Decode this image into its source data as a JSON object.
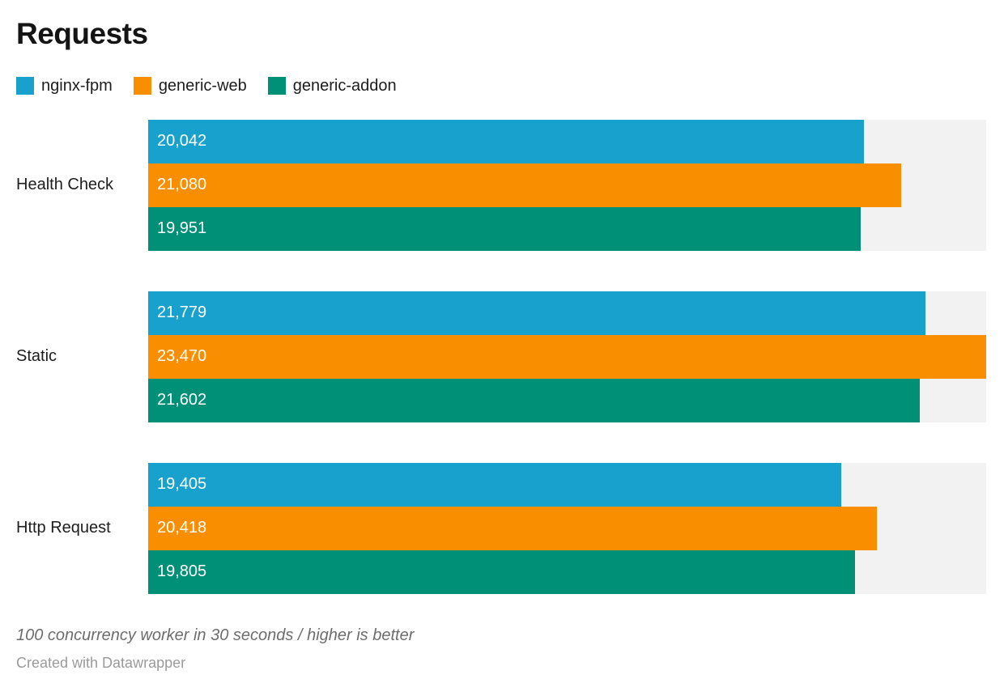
{
  "title": "Requests",
  "legend": {
    "items": [
      {
        "label": "nginx-fpm",
        "color": "#18A1CD"
      },
      {
        "label": "generic-web",
        "color": "#F98E00"
      },
      {
        "label": "generic-addon",
        "color": "#009077"
      }
    ]
  },
  "chart_data": {
    "type": "bar",
    "orientation": "horizontal",
    "title": "Requests",
    "categories": [
      "Health Check",
      "Static",
      "Http Request"
    ],
    "series": [
      {
        "name": "nginx-fpm",
        "color": "#18A1CD",
        "values": [
          20042,
          21779,
          19405
        ]
      },
      {
        "name": "generic-web",
        "color": "#F98E00",
        "values": [
          21080,
          23470,
          20418
        ]
      },
      {
        "name": "generic-addon",
        "color": "#009077",
        "values": [
          19951,
          21602,
          19805
        ]
      }
    ],
    "value_labels": [
      [
        "20,042",
        "21,080",
        "19,951"
      ],
      [
        "21,779",
        "23,470",
        "21,602"
      ],
      [
        "19,405",
        "20,418",
        "19,805"
      ]
    ],
    "xlim": [
      0,
      23470
    ],
    "grid": false,
    "legend_position": "top",
    "value_label_position": "inside-left",
    "track_color": "#F2F2F2"
  },
  "footer": {
    "notes": "100 concurrency worker in 30 seconds / higher is better",
    "attribution": "Created with Datawrapper"
  }
}
